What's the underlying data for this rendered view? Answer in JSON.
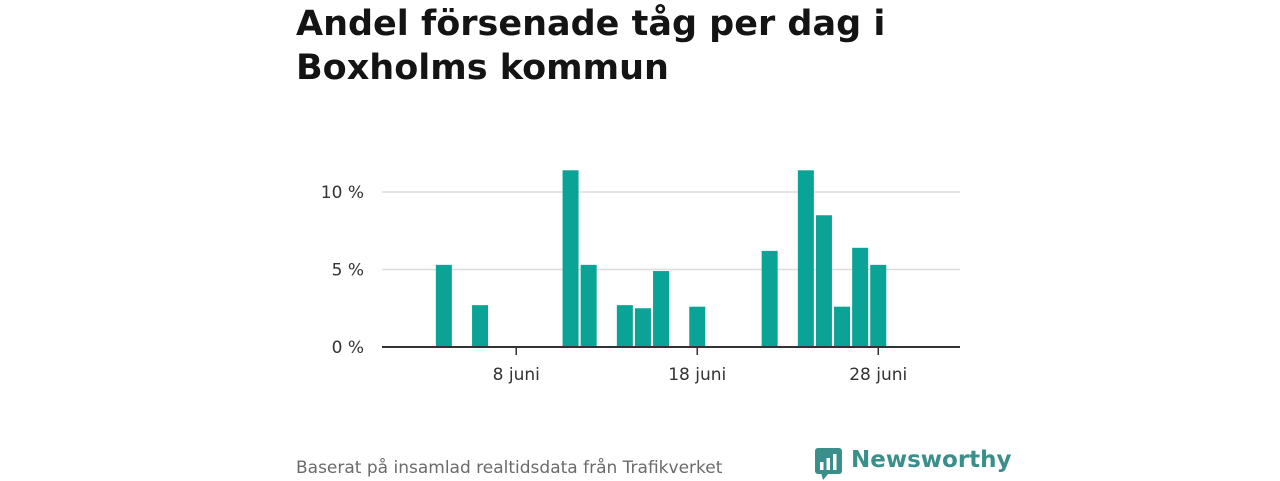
{
  "title": "Andel försenade tåg per dag i Boxholms kommun",
  "footer": "Baserat på insamlad realtidsdata från Trafikverket",
  "brand": {
    "name": "Newsworthy",
    "color": "#3a8f8a"
  },
  "chart_data": {
    "type": "bar",
    "title": "Andel försenade tåg per dag i Boxholms kommun",
    "xlabel": "",
    "ylabel": "",
    "bar_color": "#0aa395",
    "x_range": [
      1,
      31
    ],
    "ylim": [
      0,
      12
    ],
    "grid": true,
    "y_ticks": [
      {
        "value": 0,
        "label": "0 %"
      },
      {
        "value": 5,
        "label": "5 %"
      },
      {
        "value": 10,
        "label": "10 %"
      }
    ],
    "x_ticks": [
      {
        "day": 8,
        "label": "8 juni"
      },
      {
        "day": 18,
        "label": "18 juni"
      },
      {
        "day": 28,
        "label": "28 juni"
      }
    ],
    "days": [
      4,
      6,
      11,
      12,
      14,
      15,
      16,
      18,
      22,
      24,
      25,
      26,
      27,
      28
    ],
    "values": [
      5.3,
      2.7,
      11.4,
      5.3,
      2.7,
      2.5,
      4.9,
      2.6,
      6.2,
      11.4,
      8.5,
      2.6,
      6.4,
      5.3
    ]
  }
}
